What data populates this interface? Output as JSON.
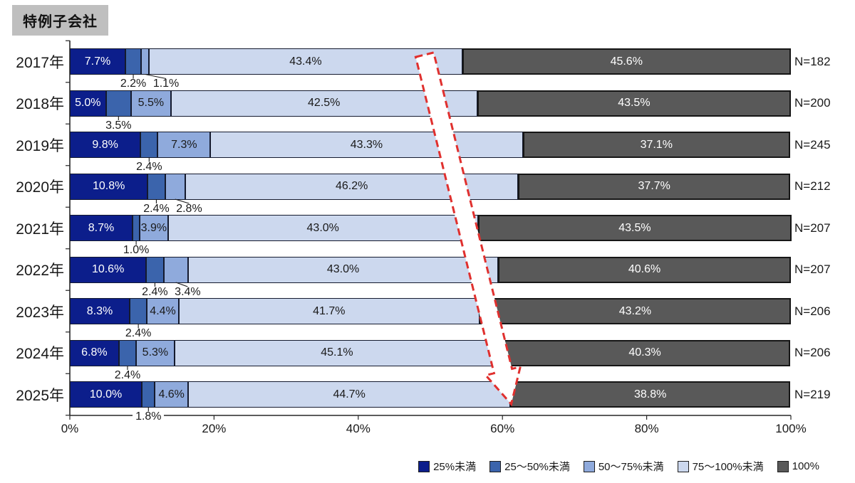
{
  "title": "特例子会社",
  "chart_data": {
    "type": "bar",
    "stacked": true,
    "orientation": "horizontal",
    "title": "特例子会社",
    "xlim": [
      0,
      100
    ],
    "x_ticks": [
      {
        "value": 0,
        "label": "0%"
      },
      {
        "value": 20,
        "label": "20%"
      },
      {
        "value": 40,
        "label": "40%"
      },
      {
        "value": 60,
        "label": "60%"
      },
      {
        "value": 80,
        "label": "80%"
      },
      {
        "value": 100,
        "label": "100%"
      }
    ],
    "series": [
      "25%未満",
      "25〜50%未満",
      "50〜75%未満",
      "75〜100%未満",
      "100%"
    ],
    "series_colors": [
      "#0c1e8b",
      "#3b64ac",
      "#8faadc",
      "#ccd8ee",
      "#595959"
    ],
    "rows": [
      {
        "category": "2017年",
        "n_label": "N=182",
        "values": [
          7.7,
          2.2,
          1.1,
          43.4,
          45.6
        ],
        "labels": [
          "7.7%",
          "2.2%",
          "1.1%",
          "43.4%",
          "45.6%"
        ],
        "label_placement": [
          "inside",
          "below",
          "below",
          "inside",
          "inside"
        ]
      },
      {
        "category": "2018年",
        "n_label": "N=200",
        "values": [
          5.0,
          3.5,
          5.5,
          42.5,
          43.5
        ],
        "labels": [
          "5.0%",
          "3.5%",
          "5.5%",
          "42.5%",
          "43.5%"
        ],
        "label_placement": [
          "inside",
          "below",
          "inside",
          "inside",
          "inside"
        ]
      },
      {
        "category": "2019年",
        "n_label": "N=245",
        "values": [
          9.8,
          2.4,
          7.3,
          43.3,
          37.1
        ],
        "labels": [
          "9.8%",
          "2.4%",
          "7.3%",
          "43.3%",
          "37.1%"
        ],
        "label_placement": [
          "inside",
          "below",
          "inside",
          "inside",
          "inside"
        ]
      },
      {
        "category": "2020年",
        "n_label": "N=212",
        "values": [
          10.8,
          2.4,
          2.8,
          46.2,
          37.7
        ],
        "labels": [
          "10.8%",
          "2.4%",
          "2.8%",
          "46.2%",
          "37.7%"
        ],
        "label_placement": [
          "inside",
          "below",
          "below",
          "inside",
          "inside"
        ]
      },
      {
        "category": "2021年",
        "n_label": "N=207",
        "values": [
          8.7,
          1.0,
          3.9,
          43.0,
          43.5
        ],
        "labels": [
          "8.7%",
          "1.0%",
          "3.9%",
          "43.0%",
          "43.5%"
        ],
        "label_placement": [
          "inside",
          "below",
          "inside",
          "inside",
          "inside"
        ]
      },
      {
        "category": "2022年",
        "n_label": "N=207",
        "values": [
          10.6,
          2.4,
          3.4,
          43.0,
          40.6
        ],
        "labels": [
          "10.6%",
          "2.4%",
          "3.4%",
          "43.0%",
          "40.6%"
        ],
        "label_placement": [
          "inside",
          "below",
          "below",
          "inside",
          "inside"
        ]
      },
      {
        "category": "2023年",
        "n_label": "N=206",
        "values": [
          8.3,
          2.4,
          4.4,
          41.7,
          43.2
        ],
        "labels": [
          "8.3%",
          "2.4%",
          "4.4%",
          "41.7%",
          "43.2%"
        ],
        "label_placement": [
          "inside",
          "below",
          "inside",
          "inside",
          "inside"
        ]
      },
      {
        "category": "2024年",
        "n_label": "N=206",
        "values": [
          6.8,
          2.4,
          5.3,
          45.1,
          40.3
        ],
        "labels": [
          "6.8%",
          "2.4%",
          "5.3%",
          "45.1%",
          "40.3%"
        ],
        "label_placement": [
          "inside",
          "below",
          "inside",
          "inside",
          "inside"
        ]
      },
      {
        "category": "2025年",
        "n_label": "N=219",
        "values": [
          10.0,
          1.8,
          4.6,
          44.7,
          38.8
        ],
        "labels": [
          "10.0%",
          "1.8%",
          "4.6%",
          "44.7%",
          "38.8%"
        ],
        "label_placement": [
          "inside",
          "below",
          "inside",
          "inside",
          "inside"
        ]
      }
    ],
    "legend_position": "bottom-right",
    "grid": false
  },
  "legend": {
    "items": [
      {
        "label": "25%未満",
        "color": "#0c1e8b"
      },
      {
        "label": "25〜50%未満",
        "color": "#3b64ac"
      },
      {
        "label": "50〜75%未満",
        "color": "#8faadc"
      },
      {
        "label": "75〜100%未満",
        "color": "#ccd8ee"
      },
      {
        "label": "100%",
        "color": "#595959"
      }
    ]
  },
  "annotation": {
    "trend_arrow": {
      "color": "#e0302e",
      "fill": "#ffffff",
      "style": "dashed",
      "direction": "down-right"
    }
  },
  "colors": {
    "axis": "#262626",
    "title_background": "#bfbfbf",
    "inside_label_light": "#ffffff",
    "inside_label_dark": "#1a1a1a"
  }
}
